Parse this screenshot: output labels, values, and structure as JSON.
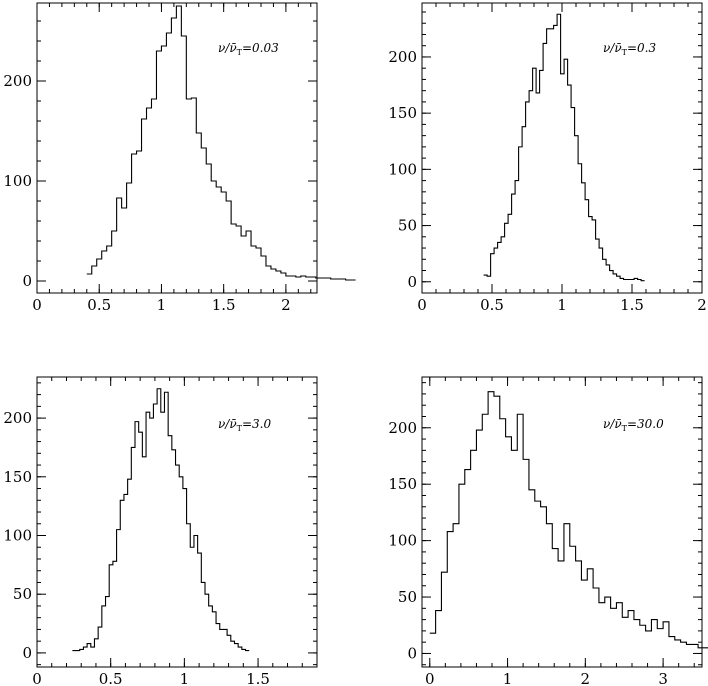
{
  "figure": {
    "colors": {
      "line": "#000000",
      "background": "#ffffff"
    }
  },
  "chart_data": [
    {
      "type": "histogram",
      "annotation": {
        "prefix": "ν/ν̄",
        "sub": "T",
        "suffix": "=0.03"
      },
      "xlim": [
        0,
        2.25
      ],
      "ylim": [
        -12,
        278
      ],
      "xticks": [
        {
          "v": 0,
          "label": "0"
        },
        {
          "v": 0.5,
          "label": "0.5"
        },
        {
          "v": 1,
          "label": "1"
        },
        {
          "v": 1.5,
          "label": "1.5"
        },
        {
          "v": 2,
          "label": "2"
        }
      ],
      "xminor": 0.1,
      "yticks": [
        {
          "v": 0,
          "label": "0"
        },
        {
          "v": 100,
          "label": "100"
        },
        {
          "v": 200,
          "label": "200"
        }
      ],
      "yminor": 20,
      "bin_start": 0.4,
      "bin_width": 0.04,
      "values": [
        7,
        15,
        22,
        30,
        35,
        50,
        83,
        73,
        98,
        127,
        130,
        162,
        173,
        182,
        230,
        235,
        248,
        263,
        275,
        245,
        182,
        183,
        148,
        133,
        117,
        100,
        94,
        89,
        80,
        57,
        55,
        45,
        50,
        35,
        33,
        25,
        15,
        12,
        10,
        8,
        5,
        5,
        4,
        5,
        4,
        4,
        3,
        3,
        3,
        2,
        2,
        2,
        1,
        1
      ]
    },
    {
      "type": "histogram",
      "annotation": {
        "prefix": "ν/ν̄",
        "sub": "T",
        "suffix": "=0.3"
      },
      "xlim": [
        0,
        2
      ],
      "ylim": [
        -10,
        248
      ],
      "xticks": [
        {
          "v": 0,
          "label": "0"
        },
        {
          "v": 0.5,
          "label": "0.5"
        },
        {
          "v": 1,
          "label": "1"
        },
        {
          "v": 1.5,
          "label": "1.5"
        },
        {
          "v": 2,
          "label": "2"
        }
      ],
      "xminor": 0.1,
      "yticks": [
        {
          "v": 0,
          "label": "0"
        },
        {
          "v": 50,
          "label": "50"
        },
        {
          "v": 100,
          "label": "100"
        },
        {
          "v": 150,
          "label": "150"
        },
        {
          "v": 200,
          "label": "200"
        }
      ],
      "yminor": 10,
      "bin_start": 0.44,
      "bin_width": 0.025,
      "values": [
        6,
        5,
        25,
        30,
        35,
        40,
        52,
        60,
        78,
        90,
        120,
        138,
        160,
        170,
        190,
        168,
        188,
        212,
        225,
        225,
        228,
        238,
        185,
        198,
        175,
        155,
        130,
        105,
        88,
        73,
        58,
        55,
        38,
        30,
        20,
        15,
        10,
        7,
        5,
        3,
        2,
        2,
        2,
        3,
        2,
        1
      ]
    },
    {
      "type": "histogram",
      "annotation": {
        "prefix": "ν/ν̄",
        "sub": "T",
        "suffix": "=3.0"
      },
      "xlim": [
        0,
        1.9
      ],
      "ylim": [
        -12,
        235
      ],
      "xticks": [
        {
          "v": 0,
          "label": "0"
        },
        {
          "v": 0.5,
          "label": "0.5"
        },
        {
          "v": 1,
          "label": "1"
        },
        {
          "v": 1.5,
          "label": "1.5"
        }
      ],
      "xminor": 0.1,
      "yticks": [
        {
          "v": 0,
          "label": "0"
        },
        {
          "v": 50,
          "label": "50"
        },
        {
          "v": 100,
          "label": "100"
        },
        {
          "v": 150,
          "label": "150"
        },
        {
          "v": 200,
          "label": "200"
        }
      ],
      "yminor": 10,
      "bin_start": 0.24,
      "bin_width": 0.025,
      "values": [
        2,
        2,
        3,
        5,
        8,
        5,
        12,
        22,
        40,
        48,
        75,
        78,
        105,
        130,
        135,
        148,
        175,
        197,
        188,
        167,
        205,
        200,
        212,
        225,
        205,
        222,
        185,
        173,
        160,
        150,
        140,
        110,
        90,
        100,
        85,
        60,
        50,
        40,
        35,
        25,
        20,
        20,
        15,
        10,
        8,
        5,
        3,
        2
      ]
    },
    {
      "type": "histogram",
      "annotation": {
        "prefix": "ν/ν̄",
        "sub": "T",
        "suffix": "=30.0"
      },
      "xlim": [
        -0.1,
        3.5
      ],
      "ylim": [
        -12,
        245
      ],
      "xticks": [
        {
          "v": 0,
          "label": "0"
        },
        {
          "v": 1,
          "label": "1"
        },
        {
          "v": 2,
          "label": "2"
        },
        {
          "v": 3,
          "label": "3"
        }
      ],
      "xminor": 0.2,
      "yticks": [
        {
          "v": 0,
          "label": "0"
        },
        {
          "v": 50,
          "label": "50"
        },
        {
          "v": 100,
          "label": "100"
        },
        {
          "v": 150,
          "label": "150"
        },
        {
          "v": 200,
          "label": "200"
        }
      ],
      "yminor": 10,
      "bin_start": 0.0,
      "bin_width": 0.075,
      "values": [
        18,
        38,
        72,
        108,
        115,
        150,
        163,
        180,
        198,
        212,
        232,
        228,
        208,
        192,
        180,
        212,
        172,
        145,
        135,
        130,
        115,
        93,
        82,
        115,
        95,
        82,
        65,
        75,
        58,
        45,
        50,
        40,
        45,
        32,
        38,
        30,
        25,
        20,
        30,
        22,
        28,
        15,
        12,
        10,
        8,
        8,
        5,
        5,
        3,
        2
      ]
    }
  ]
}
